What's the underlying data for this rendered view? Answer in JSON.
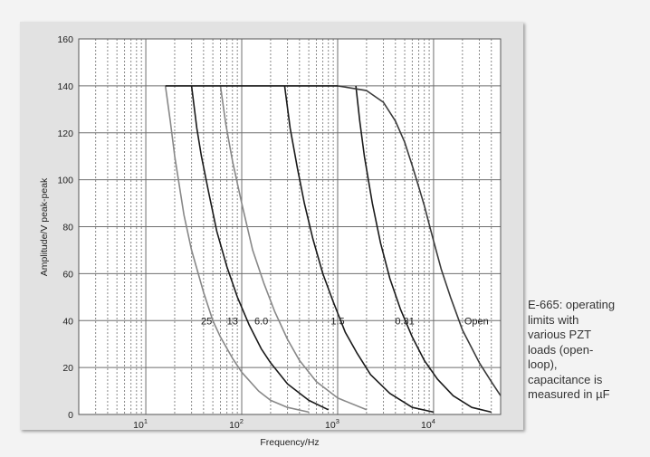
{
  "chart_data": {
    "type": "line",
    "xlabel": "Frequency/Hz",
    "ylabel": "Amplitude/V peak-peak",
    "x_scale": "log",
    "xlim": [
      2,
      50000
    ],
    "ylim": [
      0,
      160
    ],
    "x_ticks": [
      {
        "base": "10",
        "exp": "1",
        "value": 10
      },
      {
        "base": "10",
        "exp": "2",
        "value": 100
      },
      {
        "base": "10",
        "exp": "3",
        "value": 1000
      },
      {
        "base": "10",
        "exp": "4",
        "value": 10000
      }
    ],
    "y_ticks": [
      0,
      20,
      40,
      60,
      80,
      100,
      120,
      140,
      160
    ],
    "grid": true,
    "legend": "none",
    "series": [
      {
        "name": "25",
        "color": "#888888",
        "x": [
          16,
          18,
          20,
          25,
          30,
          40,
          50,
          60,
          80,
          100,
          150,
          200,
          300,
          500
        ],
        "y": [
          140,
          125,
          110,
          85,
          70,
          52,
          40,
          33,
          24,
          18,
          10,
          6,
          3,
          1
        ]
      },
      {
        "name": "13",
        "color": "#1a1a1a",
        "x": [
          30,
          34,
          38,
          45,
          55,
          70,
          90,
          120,
          160,
          200,
          300,
          500,
          800
        ],
        "y": [
          140,
          122,
          110,
          95,
          78,
          63,
          50,
          38,
          28,
          22,
          13,
          6,
          2
        ]
      },
      {
        "name": "6.0",
        "color": "#888888",
        "x": [
          60,
          68,
          80,
          100,
          130,
          170,
          220,
          300,
          400,
          600,
          1000,
          2000
        ],
        "y": [
          140,
          124,
          108,
          90,
          70,
          56,
          44,
          32,
          23,
          14,
          7,
          2
        ]
      },
      {
        "name": "1.5",
        "color": "#1a1a1a",
        "x": [
          280,
          320,
          380,
          450,
          550,
          700,
          900,
          1200,
          1600,
          2200,
          3500,
          6000,
          10000
        ],
        "y": [
          140,
          122,
          105,
          90,
          75,
          60,
          48,
          35,
          26,
          17,
          9,
          3,
          1
        ]
      },
      {
        "name": "0.31",
        "color": "#1a1a1a",
        "x": [
          1550,
          1700,
          1900,
          2300,
          2800,
          3500,
          4500,
          6000,
          8000,
          11000,
          16000,
          25000,
          40000
        ],
        "y": [
          140,
          125,
          110,
          90,
          73,
          58,
          45,
          33,
          23,
          15,
          8,
          3,
          1
        ]
      },
      {
        "name": "Open",
        "color": "#3a3a3a",
        "x": [
          1000,
          2000,
          3000,
          4000,
          5000,
          6000,
          7000,
          8000,
          9000,
          10000,
          12000,
          15000,
          20000,
          30000,
          40000,
          50000
        ],
        "y": [
          140,
          138,
          133,
          125,
          116,
          106,
          97,
          89,
          81,
          74,
          62,
          50,
          36,
          22,
          14,
          8
        ]
      }
    ],
    "curve_labels": [
      {
        "text": "25",
        "x": 43,
        "y": 40
      },
      {
        "text": "13",
        "x": 80,
        "y": 40
      },
      {
        "text": "6.0",
        "x": 160,
        "y": 40
      },
      {
        "text": "1.5",
        "x": 1000,
        "y": 40
      },
      {
        "text": "0.31",
        "x": 5000,
        "y": 40
      },
      {
        "text": "Open",
        "x": 28000,
        "y": 40
      }
    ]
  },
  "caption": "E-665: operating limits with various PZT loads (open-loop), capacitance is measured in µF",
  "colors": {
    "plot_background": "#ffffff",
    "panel_background": "#e2e2e2",
    "major_grid": "#6e6e6e",
    "minor_grid": "#8a8a8a"
  }
}
